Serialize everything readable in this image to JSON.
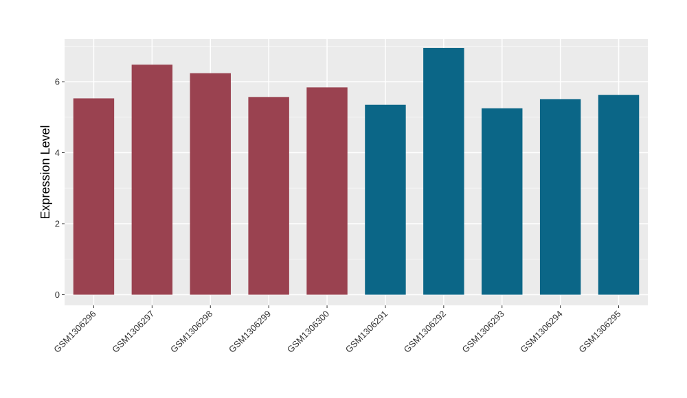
{
  "chart_data": {
    "type": "bar",
    "title": "",
    "xlabel": "",
    "ylabel": "Expression Level",
    "ylim": [
      -0.3,
      7.2
    ],
    "yticks": [
      0,
      2,
      4,
      6
    ],
    "grid": true,
    "legend": "none",
    "colors": {
      "panel_background": "#ebebeb",
      "grid_major": "#ffffff",
      "grid_minor": "#f5f5f5",
      "group_a": "#9a4250",
      "group_b": "#0b6687"
    },
    "categories": [
      "GSM1306296",
      "GSM1306297",
      "GSM1306298",
      "GSM1306299",
      "GSM1306300",
      "GSM1306291",
      "GSM1306292",
      "GSM1306293",
      "GSM1306294",
      "GSM1306295"
    ],
    "values": [
      5.53,
      6.48,
      6.24,
      5.57,
      5.84,
      5.35,
      6.95,
      5.25,
      5.51,
      5.63
    ],
    "bar_colors": [
      "#9a4250",
      "#9a4250",
      "#9a4250",
      "#9a4250",
      "#9a4250",
      "#0b6687",
      "#0b6687",
      "#0b6687",
      "#0b6687",
      "#0b6687"
    ]
  }
}
